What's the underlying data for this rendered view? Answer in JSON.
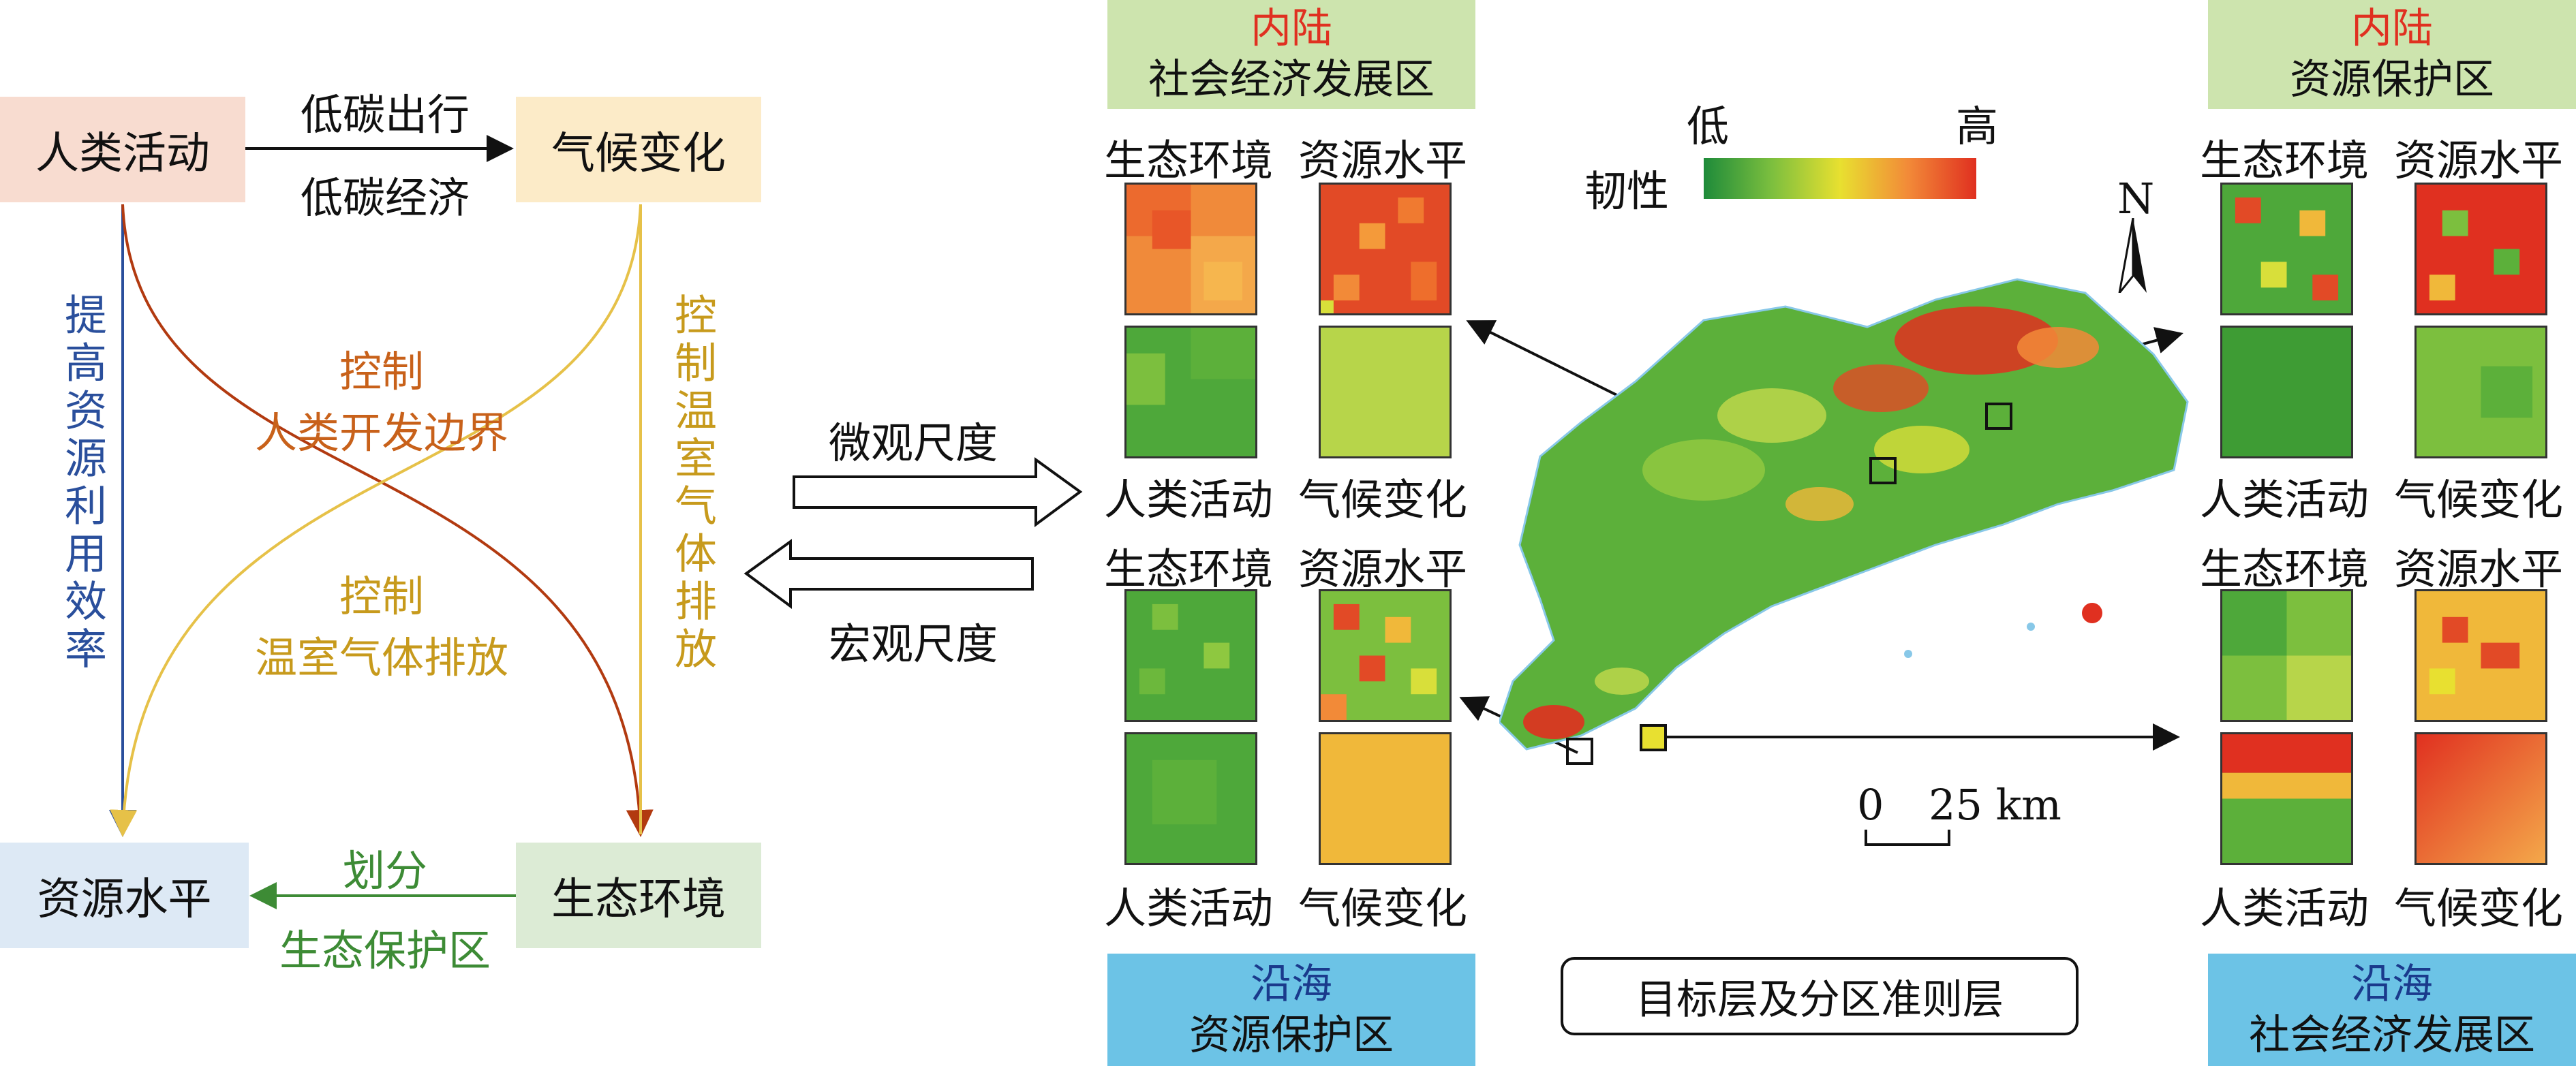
{
  "left_diagram": {
    "nodes": {
      "human_activity": "人类活动",
      "climate_change": "气候变化",
      "resource_level": "资源水平",
      "eco_environment": "生态环境"
    },
    "arrows": {
      "top_line1": "低碳出行",
      "top_line2": "低碳经济",
      "left_vertical": "提高资源利用效率",
      "right_vertical": "控制温室气体排放",
      "curve_upper_line1": "控制",
      "curve_upper_line2": "人类开发边界",
      "curve_lower_line1": "控制",
      "curve_lower_line2": "温室气体排放",
      "bottom_line1": "划分",
      "bottom_line2": "生态保护区"
    }
  },
  "scale_arrows": {
    "micro": "微观尺度",
    "macro": "宏观尺度"
  },
  "panels": {
    "inland_social": {
      "line1": "内陆",
      "line2": "社会经济发展区"
    },
    "coastal_resource": {
      "line1": "沿海",
      "line2": "资源保护区"
    },
    "inland_resource": {
      "line1": "内陆",
      "line2": "资源保护区"
    },
    "coastal_social": {
      "line1": "沿海",
      "line2": "社会经济发展区"
    }
  },
  "tile_labels": {
    "eco": "生态环境",
    "resource": "资源水平",
    "human": "人类活动",
    "climate": "气候变化"
  },
  "map": {
    "legend_low": "低",
    "legend_high": "高",
    "legend_title": "韧性",
    "north": "N",
    "scale_0": "0",
    "scale_25": "25 km",
    "footer": "目标层及分区准则层"
  },
  "colors": {
    "pink_box": "#f8dcd0",
    "yellow_box": "#fcebc8",
    "blue_box": "#dde9f5",
    "green_box": "#dcebd5",
    "header_green": "#cde4ae",
    "header_blue": "#6cc3e6",
    "inland_red": "#e03020",
    "coastal_blue": "#1a3a8c",
    "curve_red": "#b23a10",
    "curve_yellow": "#e6c148",
    "arrow_blue": "#2a4f9c",
    "arrow_green": "#3d8b35",
    "label_orange": "#c8611a",
    "label_gold": "#c79a1c"
  }
}
